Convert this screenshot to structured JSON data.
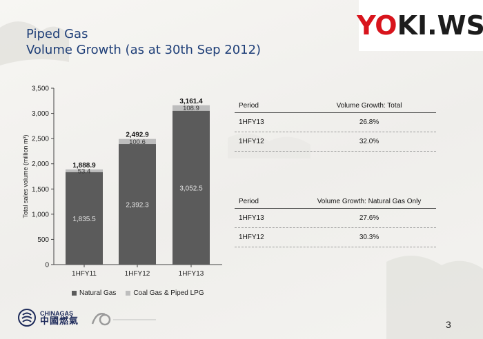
{
  "slide": {
    "title_line1": "Piped Gas",
    "title_line2": "Volume Growth (as at 30th Sep 2012)",
    "page_number": "3",
    "watermark_part1": "YO",
    "watermark_part2": "KI.WS",
    "logo_text_en": "CHINAGAS",
    "logo_text_cn": "中國燃氣"
  },
  "chart_data": {
    "type": "bar",
    "stacked": true,
    "categories": [
      "1HFY11",
      "1HFY12",
      "1HFY13"
    ],
    "series": [
      {
        "name": "Natural Gas",
        "values": [
          1835.5,
          2392.3,
          3052.5
        ],
        "color": "#5b5b5b"
      },
      {
        "name": "Coal Gas & Piped LPG",
        "values": [
          53.4,
          100.6,
          108.9
        ],
        "color": "#bdbdbd"
      }
    ],
    "totals": [
      "1,888.9",
      "2,492.9",
      "3,161.4"
    ],
    "value_labels": [
      [
        "1,835.5",
        "2,392.3",
        "3,052.5"
      ],
      [
        "53.4",
        "100.6",
        "108.9"
      ]
    ],
    "ylabel": "Total sales volume (million m³)",
    "ylim": [
      0,
      3500
    ],
    "yticks": [
      0,
      500,
      1000,
      1500,
      2000,
      2500,
      3000,
      3500
    ],
    "ytick_labels": [
      "0",
      "500",
      "1,000",
      "1,500",
      "2,000",
      "2,500",
      "3,000",
      "3,500"
    ],
    "legend_position": "bottom",
    "grid": false
  },
  "tables": [
    {
      "header": {
        "period": "Period",
        "metric": "Volume Growth: Total"
      },
      "rows": [
        {
          "period": "1HFY13",
          "value": "26.8%"
        },
        {
          "period": "1HFY12",
          "value": "32.0%"
        }
      ]
    },
    {
      "header": {
        "period": "Period",
        "metric": "Volume Growth: Natural Gas Only"
      },
      "rows": [
        {
          "period": "1HFY13",
          "value": "27.6%"
        },
        {
          "period": "1HFY12",
          "value": "30.3%"
        }
      ]
    }
  ]
}
